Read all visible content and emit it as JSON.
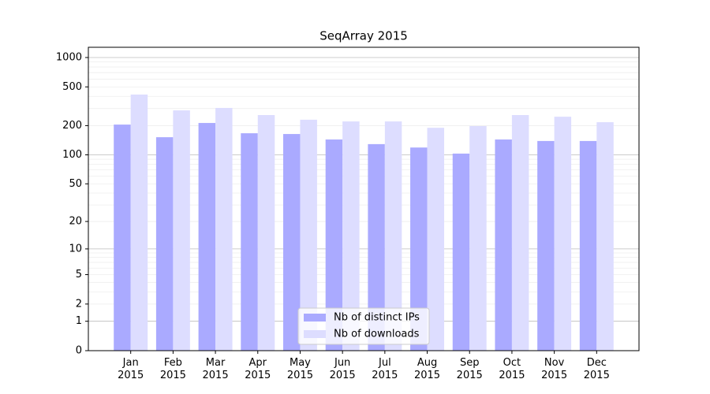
{
  "chart_data": {
    "type": "bar",
    "title": "SeqArray 2015",
    "categories": [
      "Jan\n2015",
      "Feb\n2015",
      "Mar\n2015",
      "Apr\n2015",
      "May\n2015",
      "Jun\n2015",
      "Jul\n2015",
      "Aug\n2015",
      "Sep\n2015",
      "Oct\n2015",
      "Nov\n2015",
      "Dec\n2015"
    ],
    "series": [
      {
        "name": "Nb of distinct IPs",
        "color": "#aaaaff",
        "values": [
          205,
          152,
          213,
          167,
          164,
          144,
          129,
          119,
          103,
          144,
          139,
          139
        ]
      },
      {
        "name": "Nb of downloads",
        "color": "#ddddff",
        "values": [
          417,
          287,
          304,
          257,
          230,
          221,
          221,
          190,
          198,
          257,
          247,
          217
        ]
      }
    ],
    "yscale": "log1p",
    "ylim": [
      0,
      1273
    ],
    "yticks": [
      0,
      1,
      2,
      5,
      10,
      20,
      50,
      100,
      200,
      500,
      1000
    ],
    "major_gridlines": [
      1,
      10,
      100,
      1000
    ],
    "minor_gridlines": [
      2,
      3,
      4,
      5,
      6,
      7,
      8,
      9,
      20,
      30,
      40,
      50,
      60,
      70,
      80,
      90,
      200,
      300,
      400,
      500,
      600,
      700,
      800,
      900
    ],
    "grid": true,
    "legend": "lower center"
  }
}
